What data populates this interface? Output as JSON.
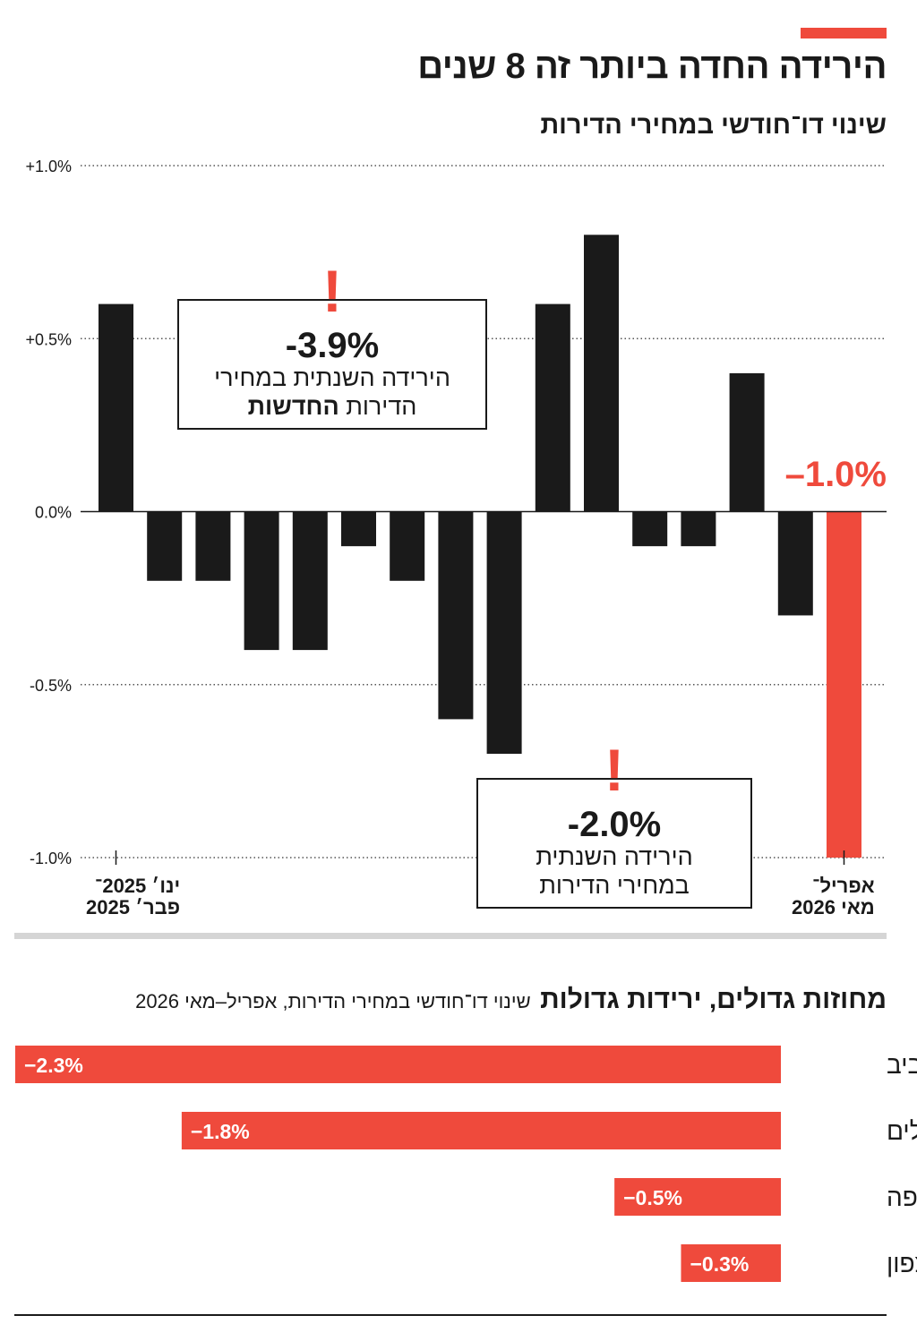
{
  "headline": "הירידה החדה ביותר זה 8 שנים",
  "subtitle": "שינוי דו־חודשי במחירי הדירות",
  "colors": {
    "accent": "#ef4a3c",
    "bar": "#1a1a1a",
    "grid": "#555555",
    "divider": "#d5d5d5"
  },
  "callouts": [
    {
      "value": "-3.9%",
      "line1": "הירידה השנתית במחירי",
      "line2_plain": "הדירות ",
      "line2_bold": "החדשות",
      "icon": "exclamation-icon"
    },
    {
      "value": "-2.0%",
      "line1": "הירידה השנתית",
      "line2_plain": "במחירי הדירות",
      "line2_bold": "",
      "icon": "exclamation-icon"
    }
  ],
  "end_value_label": "–1.0%",
  "x_labels": {
    "first_line1": "ינו׳ 2025־",
    "first_line2": "פבר׳ 2025",
    "last_line1": "אפריל־",
    "last_line2": "מאי 2026"
  },
  "chart_data": [
    {
      "type": "bar",
      "title": "שינוי דו־חודשי במחירי הדירות",
      "ylim": [
        -1.0,
        1.0
      ],
      "y_ticks": [
        1.0,
        0.5,
        0.0,
        -0.5,
        -1.0
      ],
      "y_tick_labels": [
        "+1.0%",
        "+0.5%",
        "0.0%",
        "-0.5%",
        "-1.0%"
      ],
      "grid": true,
      "values": [
        0.6,
        -0.2,
        -0.2,
        -0.4,
        -0.4,
        -0.1,
        -0.2,
        -0.6,
        -0.7,
        0.6,
        0.8,
        -0.1,
        -0.1,
        0.4,
        -0.3,
        -1.0
      ],
      "highlight_last": true
    },
    {
      "type": "bar",
      "orientation": "horizontal",
      "title": "מחוזות גדולים, ירידות גדולות",
      "subtitle": "שינוי דו־חודשי במחירי הדירות, אפריל–מאי 2026",
      "categories": [
        "תל אביב",
        "ירושלים",
        "חיפה",
        "צפון"
      ],
      "values": [
        -2.3,
        -1.8,
        -0.5,
        -0.3
      ],
      "value_labels": [
        "−2.3%",
        "−1.8%",
        "−0.5%",
        "−0.3%"
      ]
    }
  ],
  "section2": {
    "title_bold": "מחוזות גדולים, ירידות גדולות",
    "title_light": "שינוי דו־חודשי במחירי הדירות, אפריל–מאי 2026"
  }
}
